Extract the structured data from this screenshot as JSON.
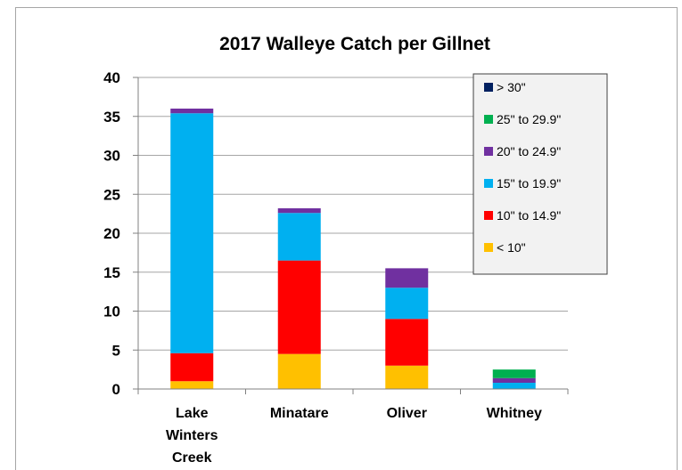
{
  "chart_data": {
    "type": "bar",
    "stacked": true,
    "title": "2017 Walleye Catch per Gillnet",
    "xlabel": "",
    "ylabel": "",
    "ylim": [
      0,
      40
    ],
    "yticks": [
      "0",
      "5",
      "10",
      "15",
      "20",
      "25",
      "30",
      "35",
      "40"
    ],
    "grid": true,
    "legend_position": "top-right",
    "categories": [
      [
        "Lake",
        "Winters",
        "Creek"
      ],
      [
        "Minatare"
      ],
      [
        "Oliver"
      ],
      [
        "Whitney"
      ]
    ],
    "series": [
      {
        "name": "< 10\"",
        "color": "#ffc000",
        "values": [
          1.0,
          4.5,
          3.0,
          0.0
        ]
      },
      {
        "name": "10\" to 14.9\"",
        "color": "#ff0000",
        "values": [
          3.6,
          12.0,
          6.0,
          0.0
        ]
      },
      {
        "name": "15\" to 19.9\"",
        "color": "#00b0f0",
        "values": [
          30.8,
          6.1,
          4.0,
          0.8
        ]
      },
      {
        "name": "20\" to 24.9\"",
        "color": "#7030a0",
        "values": [
          0.6,
          0.6,
          2.5,
          0.6
        ]
      },
      {
        "name": "25\" to 29.9\"",
        "color": "#00b050",
        "values": [
          0.0,
          0.0,
          0.0,
          1.1
        ]
      },
      {
        "name": "> 30\"",
        "color": "#002060",
        "values": [
          0.0,
          0.0,
          0.0,
          0.0
        ]
      }
    ],
    "legend_order": [
      "> 30\"",
      "25\" to 29.9\"",
      "20\" to 24.9\"",
      "15\" to 19.9\"",
      "10\" to 14.9\"",
      "< 10\""
    ]
  }
}
